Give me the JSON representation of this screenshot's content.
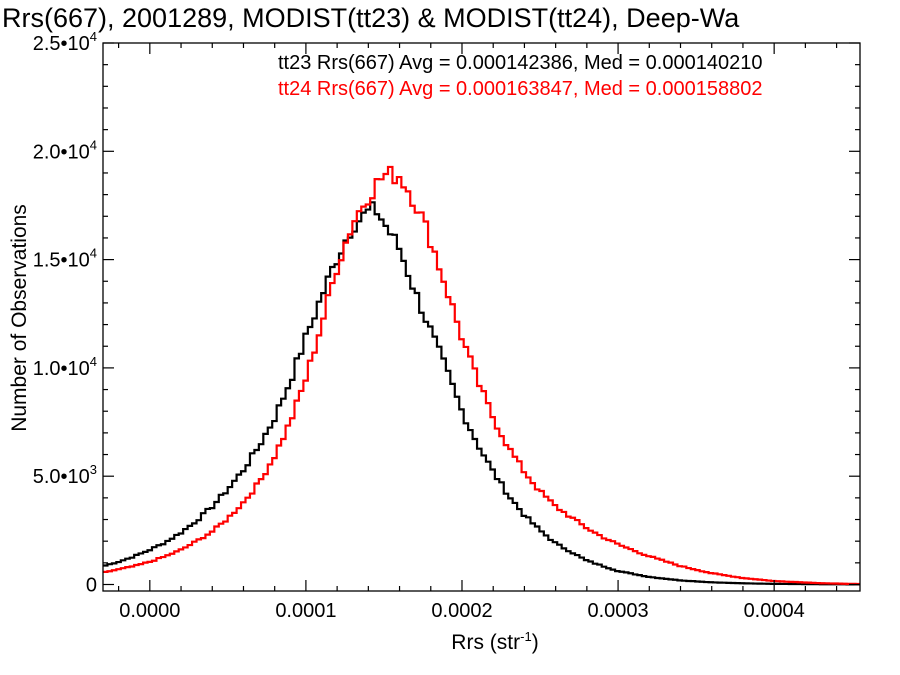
{
  "colors": {
    "tt23": "#000000",
    "tt24": "#ff0000",
    "background": "#ffffff"
  },
  "chart_data": {
    "type": "line",
    "title": "Rrs(667), 2001289, MODIST(tt23) & MODIST(tt24), Deep-Wa",
    "xlabel_base": "Rrs (str",
    "xlabel_sup": "-1",
    "xlabel_close": ")",
    "ylabel": "Number of Observations",
    "xlim": [
      -3e-05,
      0.000455
    ],
    "ylim": [
      -300,
      25000
    ],
    "x_ticks": [
      {
        "value": 0.0,
        "label": "0.0000"
      },
      {
        "value": 0.0001,
        "label": "0.0001"
      },
      {
        "value": 0.0002,
        "label": "0.0002"
      },
      {
        "value": 0.0003,
        "label": "0.0003"
      },
      {
        "value": 0.0004,
        "label": "0.0004"
      }
    ],
    "y_ticks": [
      {
        "value": 0,
        "mant": "0",
        "exp": ""
      },
      {
        "value": 5000,
        "mant": "5.0•10",
        "exp": "3"
      },
      {
        "value": 10000,
        "mant": "1.0•10",
        "exp": "4"
      },
      {
        "value": 15000,
        "mant": "1.5•10",
        "exp": "4"
      },
      {
        "value": 20000,
        "mant": "2.0•10",
        "exp": "4"
      },
      {
        "value": 25000,
        "mant": "2.5•10",
        "exp": "4"
      }
    ],
    "legend_placement": "top-right",
    "series": [
      {
        "name": "tt23",
        "legend": "tt23 Rrs(667) Avg = 0.000142386, Med = 0.000140210",
        "color": "#000000",
        "x": [
          -3e-05,
          -2e-05,
          -1e-05,
          0.0,
          1e-05,
          2e-05,
          3e-05,
          4e-05,
          5e-05,
          6e-05,
          7e-05,
          8e-05,
          9e-05,
          0.0001,
          0.00011,
          0.00012,
          0.00013,
          0.00014,
          0.000145,
          0.00015,
          0.00016,
          0.00017,
          0.00018,
          0.00019,
          0.0002,
          0.00021,
          0.00022,
          0.00023,
          0.00024,
          0.00025,
          0.00026,
          0.00028,
          0.0003,
          0.00032,
          0.00034,
          0.00036,
          0.00038,
          0.0004,
          0.00043,
          0.000455
        ],
        "y": [
          850,
          1050,
          1300,
          1600,
          1950,
          2400,
          2950,
          3600,
          4400,
          5300,
          6400,
          7700,
          9400,
          11400,
          13300,
          15100,
          16600,
          17200,
          17300,
          16700,
          15500,
          13500,
          11700,
          9900,
          8000,
          6500,
          5200,
          4100,
          3200,
          2500,
          1900,
          1100,
          620,
          350,
          190,
          100,
          55,
          30,
          12,
          5
        ]
      },
      {
        "name": "tt24",
        "legend": "tt24 Rrs(667) Avg = 0.000163847, Med = 0.000158802",
        "color": "#ff0000",
        "x": [
          -3e-05,
          -2e-05,
          -1e-05,
          0.0,
          1e-05,
          2e-05,
          3e-05,
          4e-05,
          5e-05,
          6e-05,
          7e-05,
          8e-05,
          9e-05,
          0.0001,
          0.00011,
          0.00012,
          0.00013,
          0.00014,
          0.00015,
          0.00016,
          0.00017,
          0.00018,
          0.00019,
          0.0002,
          0.00021,
          0.00022,
          0.00023,
          0.00024,
          0.00025,
          0.00026,
          0.00027,
          0.00028,
          0.00029,
          0.0003,
          0.00032,
          0.00034,
          0.00036,
          0.00038,
          0.0004,
          0.00043,
          0.000455
        ],
        "y": [
          550,
          700,
          850,
          1050,
          1300,
          1600,
          2000,
          2450,
          3050,
          3800,
          4700,
          5950,
          7500,
          9500,
          12000,
          14700,
          16700,
          18000,
          18900,
          18900,
          17700,
          15900,
          13700,
          11400,
          9400,
          7700,
          6300,
          5200,
          4300,
          3600,
          3100,
          2600,
          2200,
          1850,
          1300,
          850,
          520,
          300,
          160,
          60,
          20
        ]
      }
    ]
  }
}
